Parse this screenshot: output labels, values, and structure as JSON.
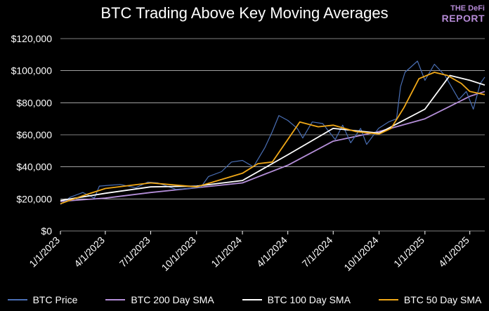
{
  "logo": {
    "line1": "THE DeFi",
    "line2": "REPORT",
    "color": "#b58ad6"
  },
  "chart_data": {
    "type": "line",
    "title": "BTC Trading Above Key Moving Averages",
    "xlabel": "",
    "ylabel": "",
    "x_ticks": [
      "1/1/2023",
      "4/1/2023",
      "7/1/2023",
      "10/1/2023",
      "1/1/2024",
      "4/1/2024",
      "7/1/2024",
      "10/1/2024",
      "1/1/2025",
      "4/1/2025"
    ],
    "y_ticks": [
      "$0",
      "$20,000",
      "$40,000",
      "$60,000",
      "$80,000",
      "$100,000",
      "$120,000"
    ],
    "ylim": [
      0,
      120000
    ],
    "grid": "horizontal",
    "legend_position": "bottom",
    "background": "#000000",
    "series": [
      {
        "name": "BTC Price",
        "color": "#4a6fb5",
        "x": [
          "2023-01-01",
          "2023-01-20",
          "2023-02-15",
          "2023-03-10",
          "2023-03-20",
          "2023-04-10",
          "2023-05-01",
          "2023-06-01",
          "2023-06-25",
          "2023-07-15",
          "2023-08-20",
          "2023-09-15",
          "2023-10-10",
          "2023-10-25",
          "2023-11-20",
          "2023-12-10",
          "2024-01-01",
          "2024-01-23",
          "2024-02-15",
          "2024-03-01",
          "2024-03-14",
          "2024-04-01",
          "2024-04-20",
          "2024-05-01",
          "2024-05-20",
          "2024-06-10",
          "2024-07-05",
          "2024-07-20",
          "2024-08-05",
          "2024-08-25",
          "2024-09-06",
          "2024-09-30",
          "2024-10-20",
          "2024-11-05",
          "2024-11-13",
          "2024-11-22",
          "2024-12-17",
          "2025-01-01",
          "2025-01-20",
          "2025-02-10",
          "2025-03-10",
          "2025-03-25",
          "2025-04-08",
          "2025-04-22",
          "2025-05-01"
        ],
        "values": [
          16500,
          21000,
          24000,
          20500,
          28000,
          28500,
          29000,
          27000,
          30500,
          30000,
          26000,
          26500,
          27500,
          34000,
          37000,
          43000,
          44000,
          40000,
          52000,
          62000,
          72000,
          69000,
          64000,
          58000,
          68000,
          67000,
          57000,
          66000,
          55000,
          64000,
          54000,
          64000,
          68000,
          70000,
          90000,
          99000,
          106000,
          94000,
          104000,
          97000,
          82000,
          87000,
          76000,
          92000,
          96000
        ]
      },
      {
        "name": "BTC 200 Day SMA",
        "color": "#b48ed8",
        "x": [
          "2023-01-01",
          "2023-04-01",
          "2023-07-01",
          "2023-10-01",
          "2024-01-01",
          "2024-04-01",
          "2024-07-01",
          "2024-10-01",
          "2025-01-01",
          "2025-04-01",
          "2025-05-01"
        ],
        "values": [
          18500,
          20500,
          24000,
          27000,
          30000,
          41000,
          56000,
          62000,
          70000,
          84000,
          87000
        ]
      },
      {
        "name": "BTC 100 Day SMA",
        "color": "#ffffff",
        "x": [
          "2023-01-01",
          "2023-04-01",
          "2023-07-01",
          "2023-10-01",
          "2024-01-01",
          "2024-04-01",
          "2024-07-01",
          "2024-10-01",
          "2025-01-01",
          "2025-02-20",
          "2025-04-01",
          "2025-05-01"
        ],
        "values": [
          19000,
          23500,
          27500,
          28000,
          31500,
          47500,
          64000,
          61000,
          76000,
          97000,
          94000,
          91000
        ]
      },
      {
        "name": "BTC 50 Day SMA",
        "color": "#f0a818",
        "x": [
          "2023-01-01",
          "2023-02-15",
          "2023-04-01",
          "2023-07-01",
          "2023-10-01",
          "2024-01-01",
          "2024-02-01",
          "2024-03-01",
          "2024-04-01",
          "2024-04-25",
          "2024-06-01",
          "2024-07-01",
          "2024-08-15",
          "2024-10-01",
          "2024-10-25",
          "2024-11-20",
          "2024-12-20",
          "2025-01-20",
          "2025-02-15",
          "2025-03-15",
          "2025-04-01",
          "2025-05-01"
        ],
        "values": [
          17000,
          22000,
          26500,
          30000,
          27500,
          36000,
          42000,
          43000,
          57000,
          68000,
          65000,
          66000,
          62000,
          60500,
          64000,
          77000,
          95000,
          99000,
          97000,
          92000,
          87000,
          85000
        ]
      }
    ]
  }
}
